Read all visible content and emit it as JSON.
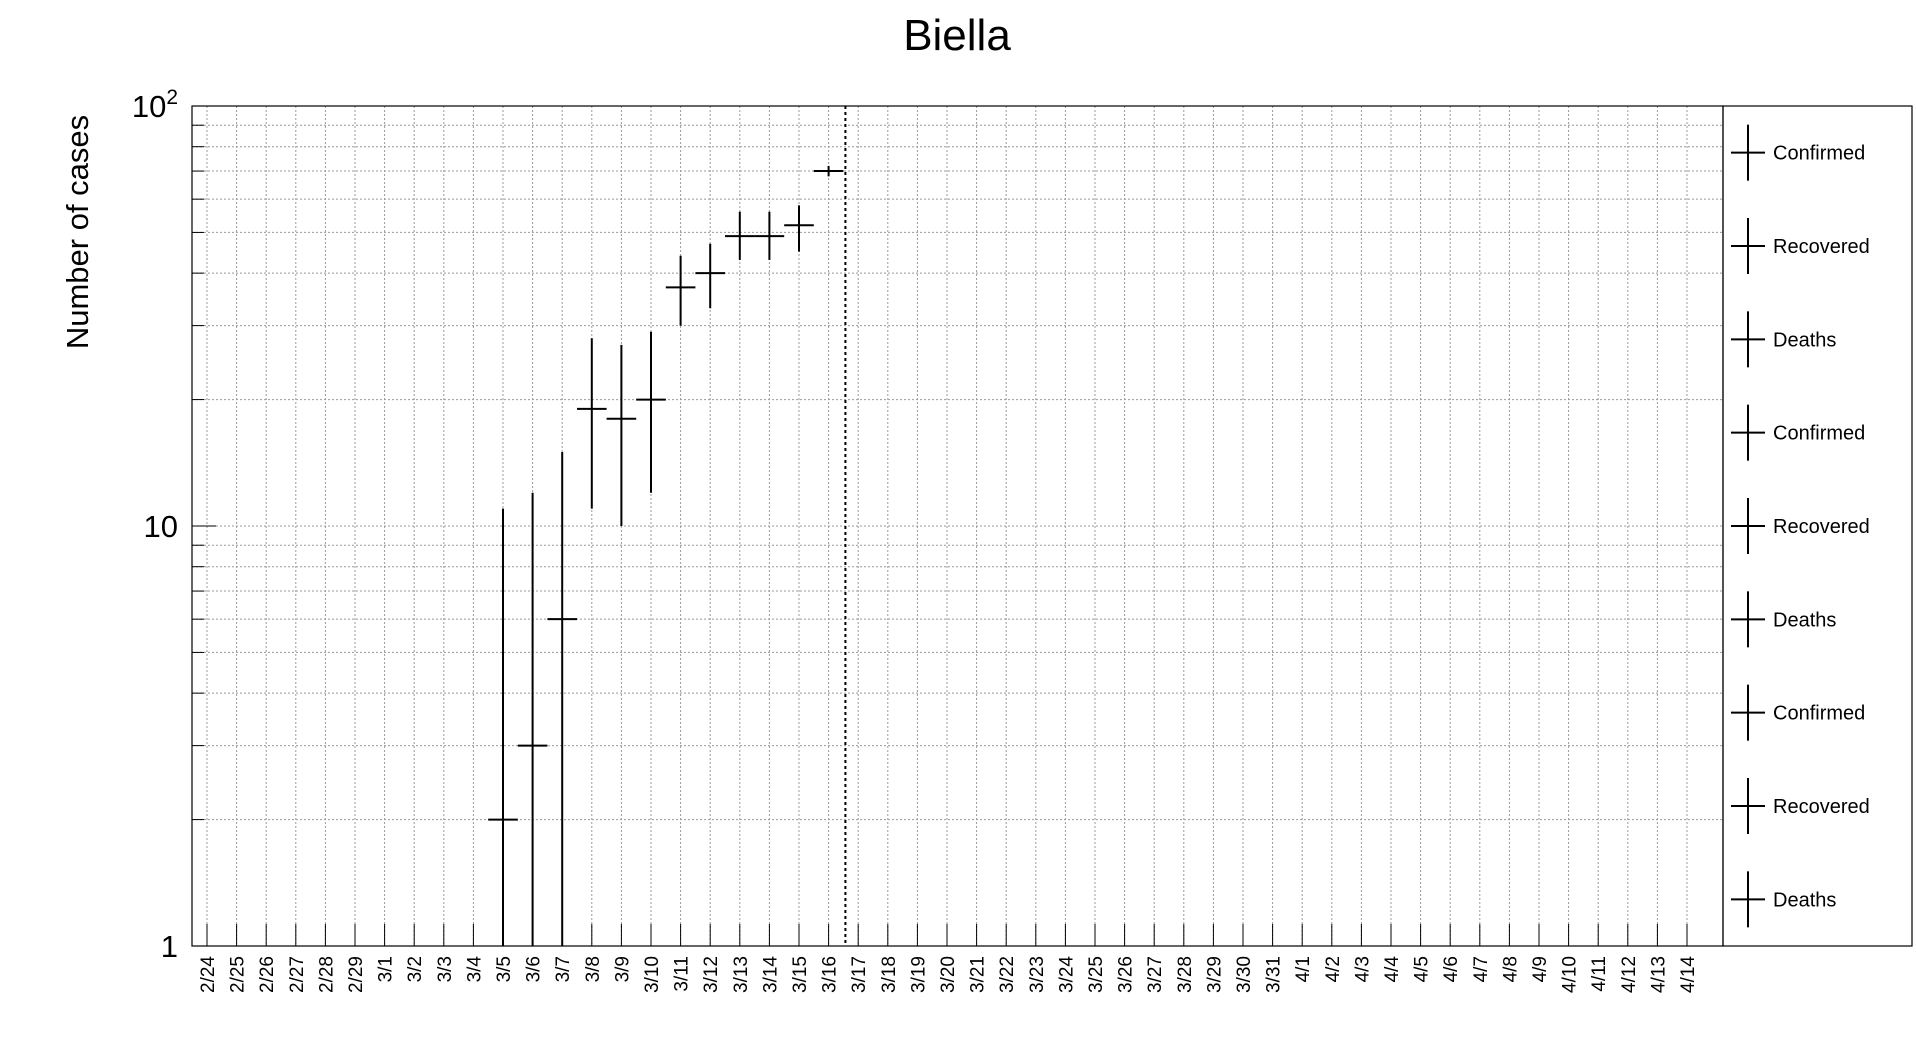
{
  "chart_data": {
    "type": "scatter",
    "title": "Biella",
    "ylabel": "Number of cases",
    "xlabel": "",
    "y_scale": "log",
    "ylim": [
      1,
      100
    ],
    "y_tick_labels": [
      {
        "value": 1,
        "base": "1",
        "exp": ""
      },
      {
        "value": 10,
        "base": "10",
        "exp": ""
      },
      {
        "value": 100,
        "base": "10",
        "exp": "2"
      }
    ],
    "grid": true,
    "legend_position": "right",
    "categories": [
      "2/24",
      "2/25",
      "2/26",
      "2/27",
      "2/28",
      "2/29",
      "3/1",
      "3/2",
      "3/3",
      "3/4",
      "3/5",
      "3/6",
      "3/7",
      "3/8",
      "3/9",
      "3/10",
      "3/11",
      "3/12",
      "3/13",
      "3/14",
      "3/15",
      "3/16",
      "3/17",
      "3/18",
      "3/19",
      "3/20",
      "3/21",
      "3/22",
      "3/23",
      "3/24",
      "3/25",
      "3/26",
      "3/27",
      "3/28",
      "3/29",
      "3/30",
      "3/31",
      "4/1",
      "4/2",
      "4/3",
      "4/4",
      "4/5",
      "4/6",
      "4/7",
      "4/8",
      "4/9",
      "4/10",
      "4/11",
      "4/12",
      "4/13",
      "4/14"
    ],
    "points": [
      {
        "x": "3/5",
        "y": 2,
        "ylow": 1,
        "yhigh": 11
      },
      {
        "x": "3/6",
        "y": 3,
        "ylow": 1,
        "yhigh": 12
      },
      {
        "x": "3/7",
        "y": 6,
        "ylow": 1,
        "yhigh": 15
      },
      {
        "x": "3/8",
        "y": 19,
        "ylow": 11,
        "yhigh": 28
      },
      {
        "x": "3/9",
        "y": 18,
        "ylow": 10,
        "yhigh": 27
      },
      {
        "x": "3/10",
        "y": 20,
        "ylow": 12,
        "yhigh": 29
      },
      {
        "x": "3/11",
        "y": 37,
        "ylow": 30,
        "yhigh": 44
      },
      {
        "x": "3/12",
        "y": 40,
        "ylow": 33,
        "yhigh": 47
      },
      {
        "x": "3/13",
        "y": 49,
        "ylow": 43,
        "yhigh": 56
      },
      {
        "x": "3/14",
        "y": 49,
        "ylow": 43,
        "yhigh": 56
      },
      {
        "x": "3/15",
        "y": 52,
        "ylow": 45,
        "yhigh": 58
      },
      {
        "x": "3/16",
        "y": 70,
        "ylow": 68,
        "yhigh": 72
      }
    ],
    "marker_line_after": "3/16",
    "legend": [
      "Confirmed",
      "Recovered",
      "Deaths",
      "Confirmed",
      "Recovered",
      "Deaths",
      "Confirmed",
      "Recovered",
      "Deaths"
    ]
  }
}
